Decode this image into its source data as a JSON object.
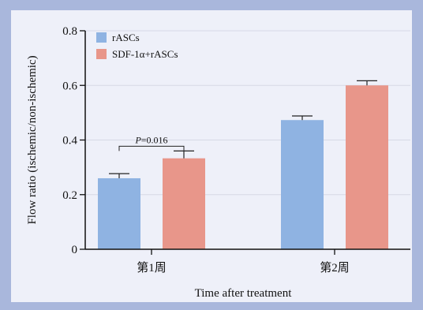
{
  "chart_data": {
    "type": "bar",
    "title": "",
    "xlabel": "Time after treatment",
    "ylabel": "Flow ratio (ischemic/non-ischemic)",
    "ylim": [
      0,
      0.8
    ],
    "yticks": [
      0,
      0.2,
      0.4,
      0.6,
      0.8
    ],
    "ytick_labels": [
      "0",
      "0.2",
      "0.4",
      "0.6",
      "0.8"
    ],
    "categories": [
      "第1周",
      "第2周"
    ],
    "series": [
      {
        "name": "rASCs",
        "color": "#8fb3e2",
        "values": [
          0.26,
          0.473
        ],
        "errors": [
          0.017,
          0.015
        ]
      },
      {
        "name": "SDF-1α+rASCs",
        "color": "#e8968a",
        "values": [
          0.333,
          0.6
        ],
        "errors": [
          0.027,
          0.017
        ]
      }
    ],
    "grid": true,
    "legend": "top-left",
    "annotation": {
      "p_label": "P",
      "p_value": "=0.016",
      "category_index": 0
    }
  }
}
